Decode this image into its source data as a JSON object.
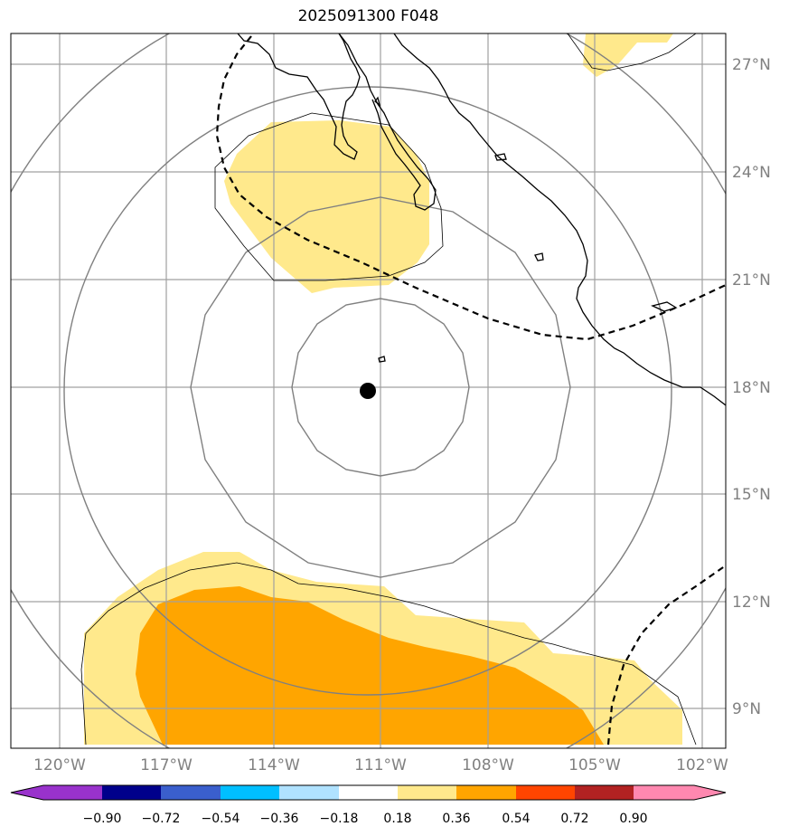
{
  "title": "2025091300 F048",
  "map": {
    "lon_labels": [
      "120°W",
      "117°W",
      "114°W",
      "111°W",
      "108°W",
      "105°W",
      "102°W"
    ],
    "lat_labels": [
      "27°N",
      "24°N",
      "21°N",
      "18°N",
      "15°N",
      "12°N",
      "9°N"
    ],
    "label_color": "#808080",
    "grid_color": "#a0a0a0",
    "range_ring_color": "#808080",
    "center_marker": "storm-center-dot",
    "fill_colors": {
      "light": "#ffe98c",
      "dark": "#ffa500"
    }
  },
  "colorbar": {
    "tick_labels": [
      "−0.90",
      "−0.72",
      "−0.54",
      "−0.36",
      "−0.18",
      "0.18",
      "0.36",
      "0.54",
      "0.72",
      "0.90"
    ],
    "colors": [
      "#9932cc",
      "#00008b",
      "#3a5fcd",
      "#00bfff",
      "#b0e2ff",
      "#ffffff",
      "#ffe98c",
      "#ffa500",
      "#ff4500",
      "#b22222",
      "#ff88b0",
      "#ff88b0"
    ]
  }
}
